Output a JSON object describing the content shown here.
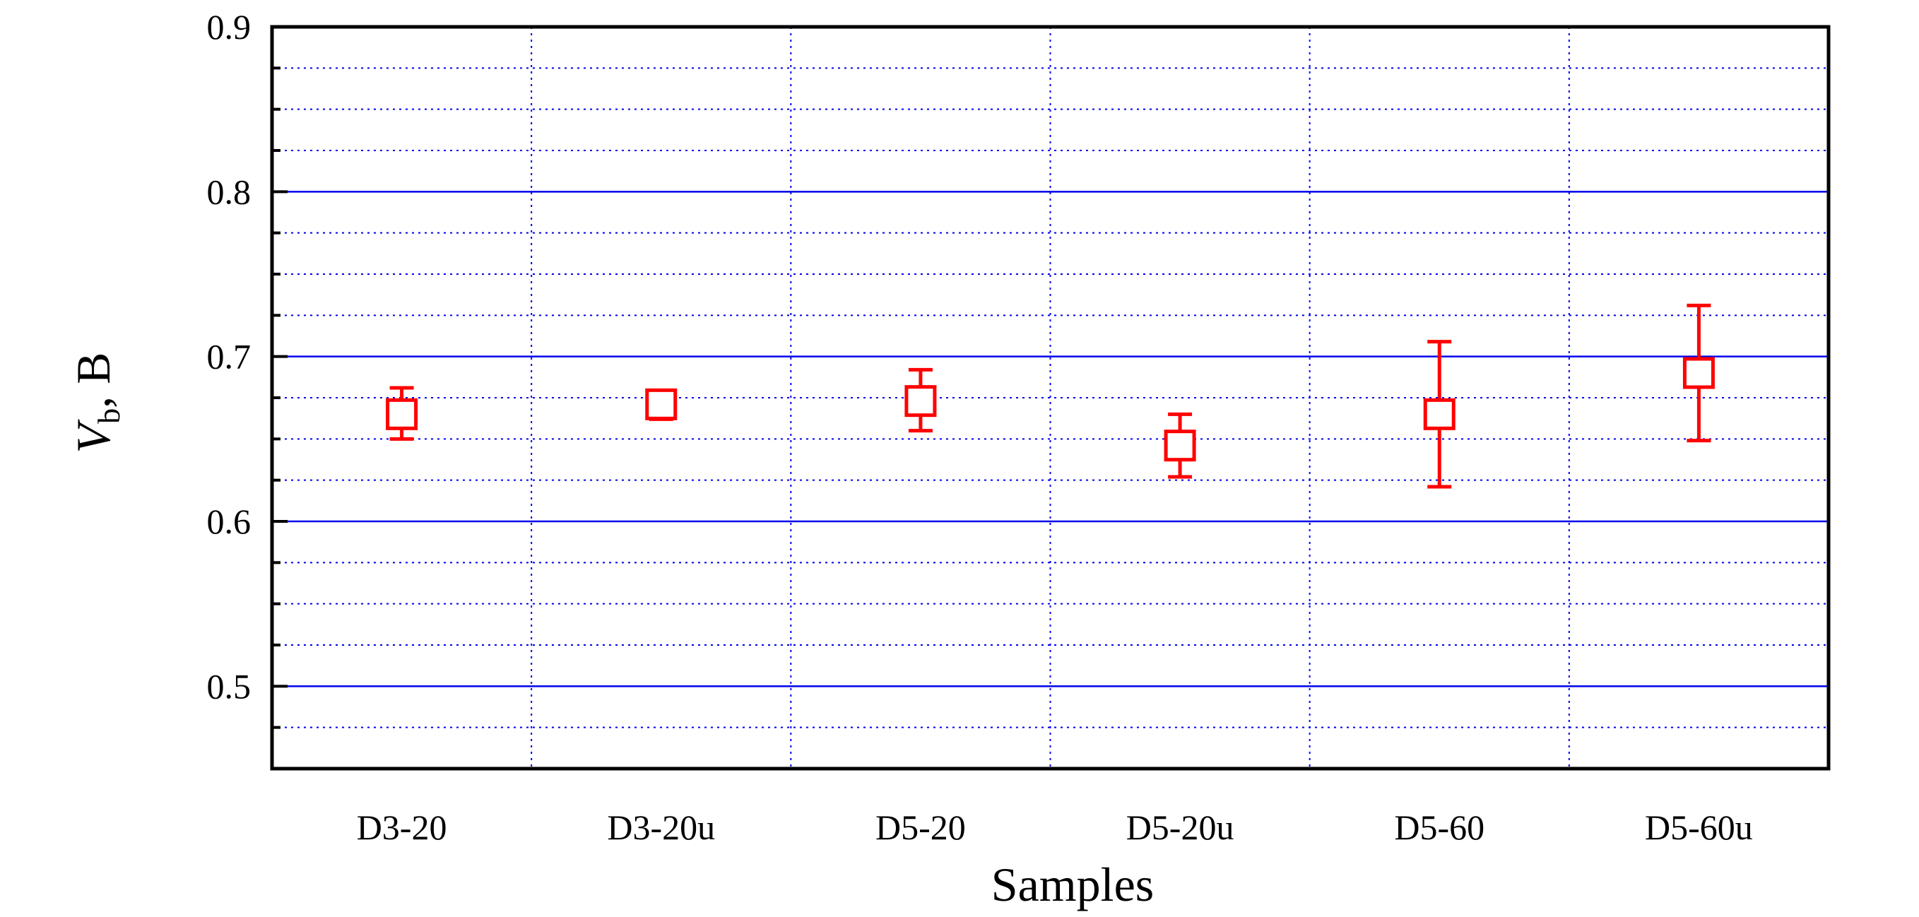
{
  "chart_data": {
    "type": "scatter",
    "title": "",
    "xlabel": "Samples",
    "ylabel": {
      "symbol": "V",
      "subscript": "b",
      "unit": ",  B"
    },
    "categories": [
      "D3-20",
      "D3-20u",
      "D5-20",
      "D5-20u",
      "D5-60",
      "D5-60u"
    ],
    "ylim": [
      0.45,
      0.9
    ],
    "yticks": [
      "0.5",
      "0.6",
      "0.7",
      "0.8",
      "0.9"
    ],
    "grid": "on (solid major, dotted minor)",
    "legend": "none",
    "series": [
      {
        "marker": "open-square",
        "color": "#ff0000",
        "values": [
          0.665,
          0.671,
          0.673,
          0.646,
          0.665,
          0.69
        ],
        "err_low": [
          0.65,
          0.662,
          0.655,
          0.627,
          0.621,
          0.649
        ],
        "err_high": [
          0.681,
          0.679,
          0.692,
          0.665,
          0.709,
          0.731
        ]
      }
    ],
    "colors": {
      "major_grid": "#0000ee",
      "minor_grid": "#0000ee",
      "axis": "#000000"
    }
  }
}
